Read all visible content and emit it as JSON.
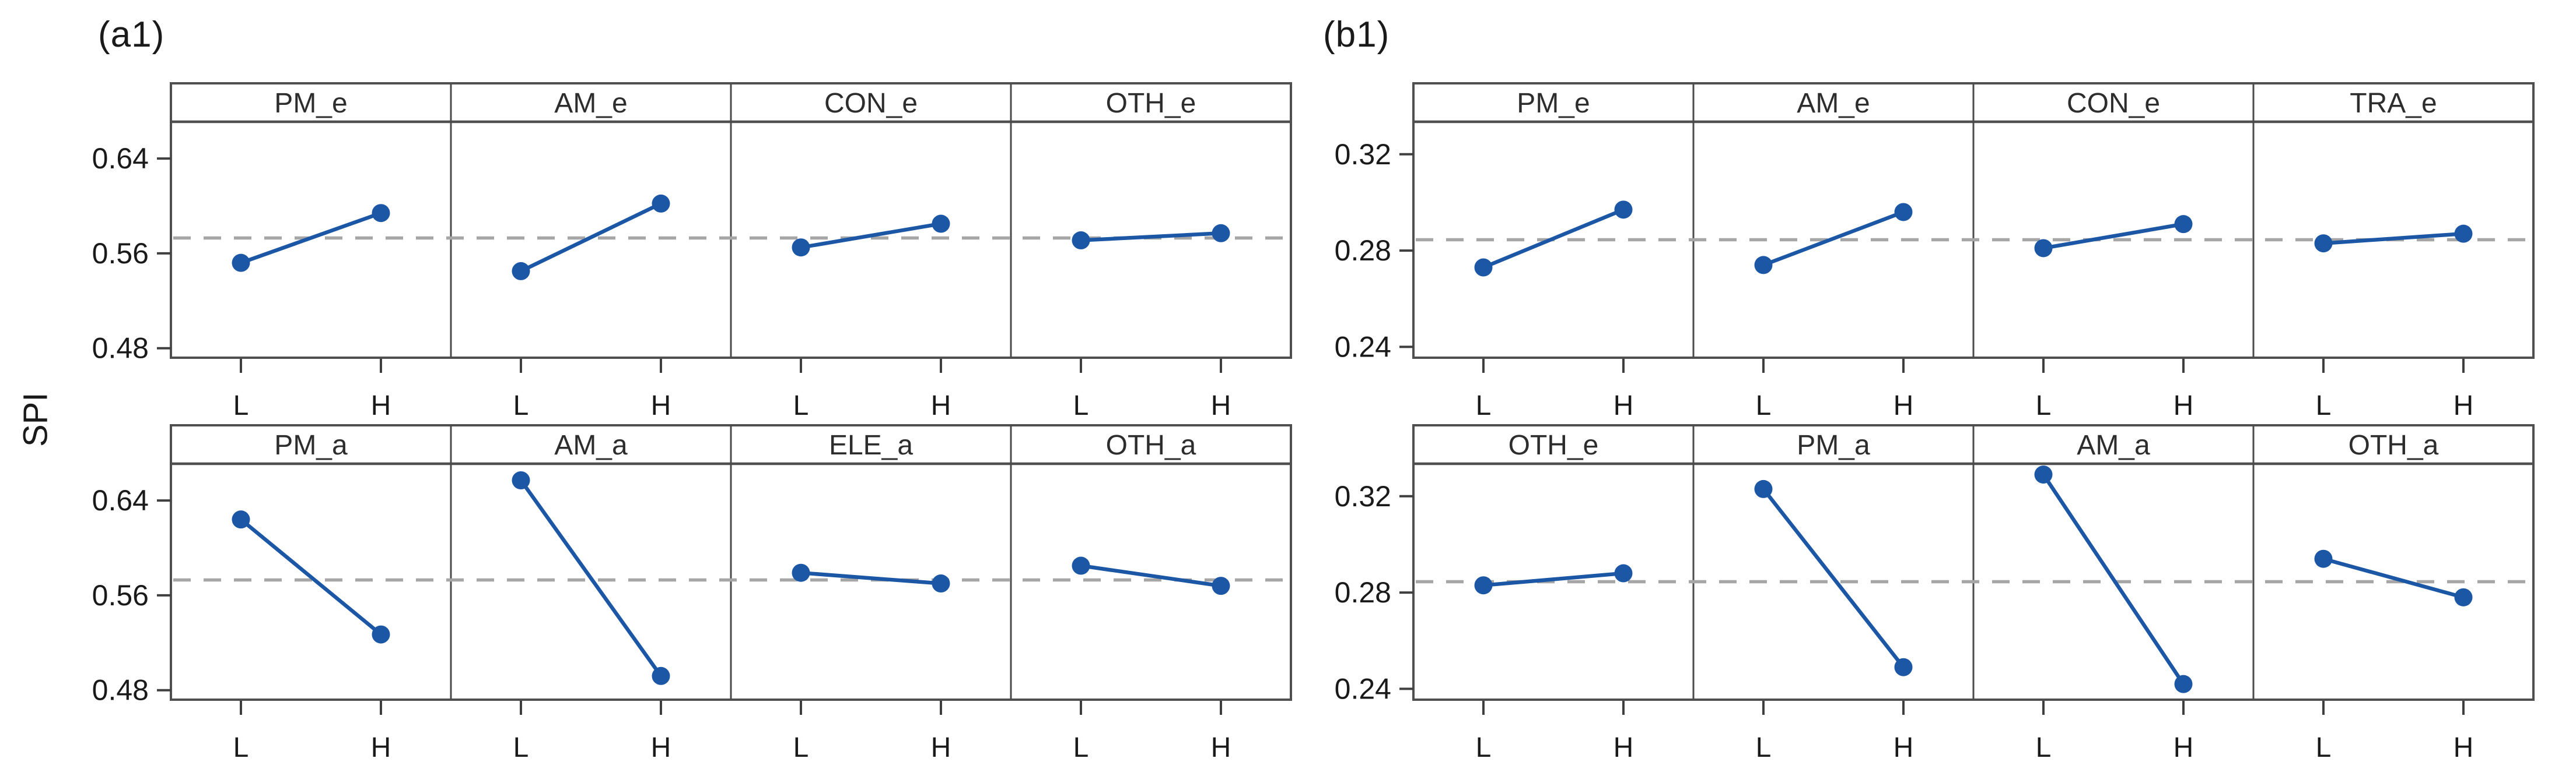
{
  "figure_type": "main-effects-plot",
  "ylabel": "SPI",
  "colors": {
    "effect_line": "#1c57a5",
    "marker": "#1c57a5",
    "mean_line": "#a6a6a6",
    "frame": "#4f4f4f",
    "separator": "#4a4a4a",
    "tick": "#3f3f3f",
    "text": "#1a1a1a",
    "header_text": "#2d2d2d",
    "background": "#ffffff"
  },
  "chart_data": [
    {
      "type": "line",
      "title": "(a1)",
      "ylabel": "SPI",
      "x_levels": [
        "L",
        "H"
      ],
      "ytick_labels": [
        "0.64",
        "0.56",
        "0.48"
      ],
      "yticks": [
        0.64,
        0.56,
        0.48
      ],
      "ylim": [
        0.472,
        0.671
      ],
      "mean_line": 0.573,
      "grid": "2x4",
      "legend": "none",
      "rows": [
        [
          {
            "factor": "PM_e",
            "L": 0.552,
            "H": 0.594
          },
          {
            "factor": "AM_e",
            "L": 0.545,
            "H": 0.602
          },
          {
            "factor": "CON_e",
            "L": 0.565,
            "H": 0.585
          },
          {
            "factor": "OTH_e",
            "L": 0.571,
            "H": 0.577
          }
        ],
        [
          {
            "factor": "PM_a",
            "L": 0.624,
            "H": 0.527
          },
          {
            "factor": "AM_a",
            "L": 0.657,
            "H": 0.492
          },
          {
            "factor": "ELE_a",
            "L": 0.579,
            "H": 0.57
          },
          {
            "factor": "OTH_a",
            "L": 0.585,
            "H": 0.568
          }
        ]
      ]
    },
    {
      "type": "line",
      "title": "(b1)",
      "ylabel": "SPI",
      "x_levels": [
        "L",
        "H"
      ],
      "ytick_labels": [
        "0.32",
        "0.28",
        "0.24"
      ],
      "yticks": [
        0.32,
        0.28,
        0.24
      ],
      "ylim": [
        0.2355,
        0.3335
      ],
      "mean_line": 0.2845,
      "grid": "2x4",
      "legend": "none",
      "rows": [
        [
          {
            "factor": "PM_e",
            "L": 0.273,
            "H": 0.297
          },
          {
            "factor": "AM_e",
            "L": 0.274,
            "H": 0.296
          },
          {
            "factor": "CON_e",
            "L": 0.281,
            "H": 0.291
          },
          {
            "factor": "TRA_e",
            "L": 0.283,
            "H": 0.287
          }
        ],
        [
          {
            "factor": "OTH_e",
            "L": 0.283,
            "H": 0.288
          },
          {
            "factor": "PM_a",
            "L": 0.323,
            "H": 0.249
          },
          {
            "factor": "AM_a",
            "L": 0.329,
            "H": 0.242
          },
          {
            "factor": "OTH_a",
            "L": 0.294,
            "H": 0.278
          }
        ]
      ]
    }
  ]
}
